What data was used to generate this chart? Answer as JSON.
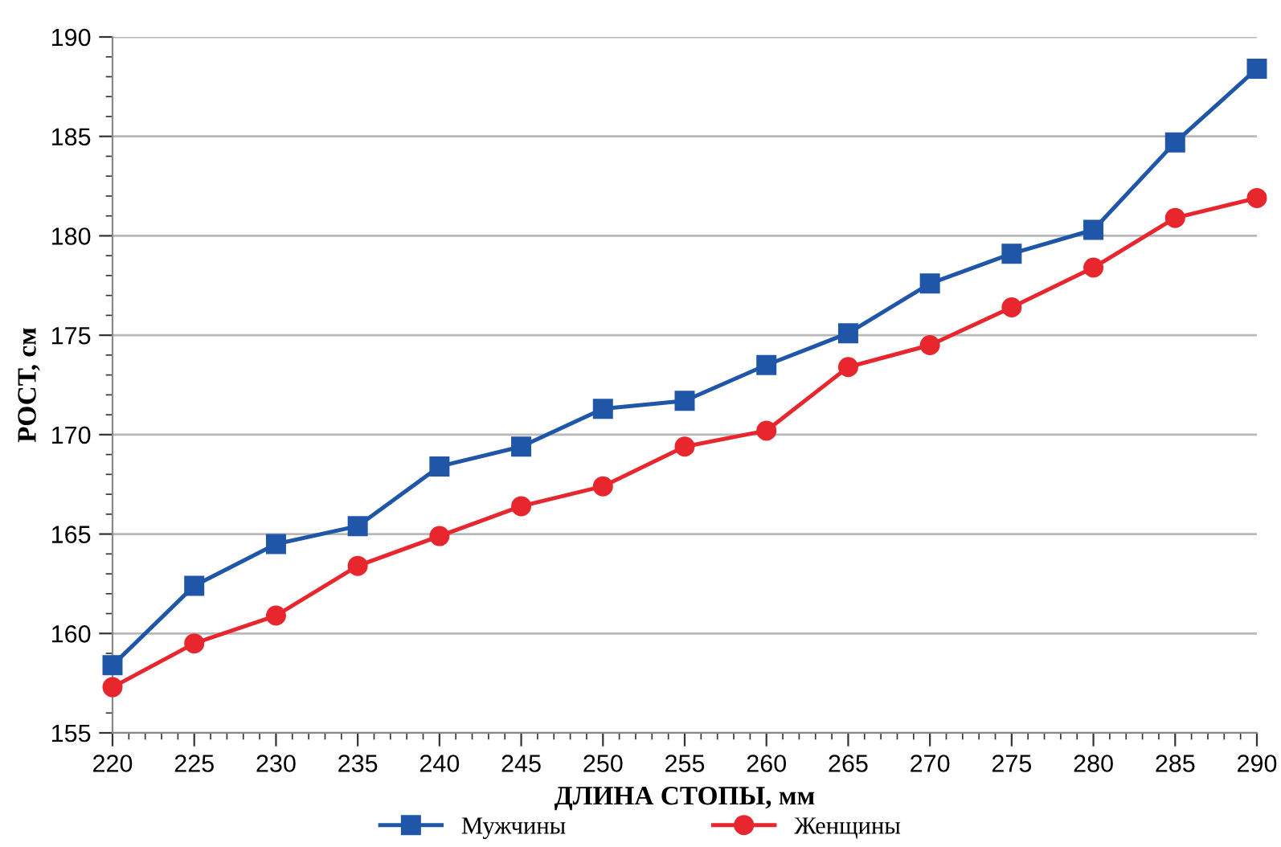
{
  "chart_data": {
    "type": "line",
    "xlabel": "ДЛИНА СТОПЫ, мм",
    "ylabel": "РОСТ, см",
    "x": [
      220,
      225,
      230,
      235,
      240,
      245,
      250,
      255,
      260,
      265,
      270,
      275,
      280,
      285,
      290
    ],
    "series": [
      {
        "name": "Мужчины",
        "color": "#1f56a8",
        "marker": "square",
        "values": [
          158.4,
          162.4,
          164.5,
          165.4,
          168.4,
          169.4,
          171.3,
          171.7,
          173.5,
          175.1,
          177.6,
          179.1,
          180.3,
          184.7,
          188.4
        ]
      },
      {
        "name": "Женщины",
        "color": "#e8262d",
        "marker": "circle",
        "values": [
          157.3,
          159.5,
          160.9,
          163.4,
          164.9,
          166.4,
          167.4,
          169.4,
          170.2,
          173.4,
          174.5,
          176.4,
          178.4,
          180.9,
          181.9
        ]
      }
    ],
    "xlim": [
      220,
      290
    ],
    "xticks": [
      220,
      225,
      230,
      235,
      240,
      245,
      250,
      255,
      260,
      265,
      270,
      275,
      280,
      285,
      290
    ],
    "ylim": [
      155,
      190
    ],
    "yticks": [
      155,
      160,
      165,
      170,
      175,
      180,
      185,
      190
    ],
    "grid": "y",
    "legend": "bottom",
    "line_style": "solid"
  }
}
